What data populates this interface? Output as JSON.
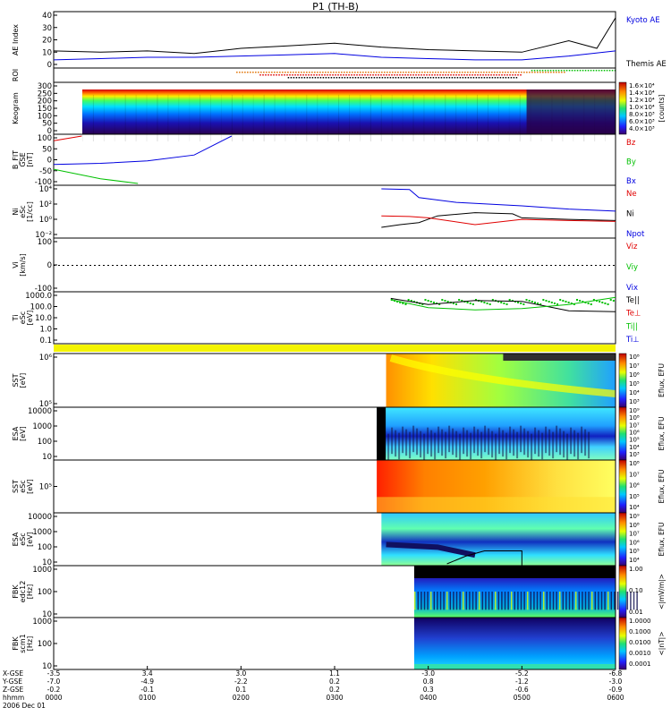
{
  "title": "P1 (TH-B)",
  "colors": {
    "red": "#e00000",
    "green": "#00c000",
    "blue": "#0000e0",
    "black": "#000000",
    "orange": "#e07000"
  },
  "panels": [
    {
      "id": "ae",
      "ylabel": [
        "AE Index"
      ],
      "ticks": [
        "40",
        "30",
        "20",
        "10",
        "0"
      ],
      "legend": [
        {
          "text": "Kyoto AE",
          "color": "blue"
        },
        {
          "text": "Themis AE",
          "color": "black"
        }
      ]
    },
    {
      "id": "roi",
      "ylabel": [
        "ROI"
      ],
      "ticks": [],
      "legend": []
    },
    {
      "id": "keogram",
      "ylabel": [
        "Keogram"
      ],
      "ticks": [
        "300",
        "250",
        "200",
        "150",
        "100",
        "50",
        "0"
      ],
      "colorbar": {
        "title": "[counts]",
        "labels": [
          "1.6×10⁴",
          "1.4×10⁴",
          "1.2×10⁴",
          "1.0×10⁴",
          "8.0×10³",
          "6.0×10³",
          "4.0×10³"
        ]
      }
    },
    {
      "id": "bfit",
      "ylabel": [
        "B_FIT",
        "GSE",
        "[nT]"
      ],
      "ticks": [
        "100",
        "50",
        "0",
        "-50",
        "-100"
      ],
      "legend": [
        {
          "text": "Bz",
          "color": "red"
        },
        {
          "text": "By",
          "color": "green"
        },
        {
          "text": "Bx",
          "color": "blue"
        }
      ]
    },
    {
      "id": "ni",
      "ylabel": [
        "Ni",
        "eSc",
        "[1/cc]"
      ],
      "ticks": [
        "10⁴",
        "10²",
        "10⁰",
        "10⁻²"
      ],
      "legend": [
        {
          "text": "Ne",
          "color": "red"
        },
        {
          "text": "Ni",
          "color": "black"
        },
        {
          "text": "Npot",
          "color": "blue"
        }
      ]
    },
    {
      "id": "vi",
      "ylabel": [
        "Vi",
        "[km/s]"
      ],
      "ticks": [
        "100",
        "0",
        "-100"
      ],
      "legend": [
        {
          "text": "Viz",
          "color": "red"
        },
        {
          "text": "Viy",
          "color": "green"
        },
        {
          "text": "Vix",
          "color": "blue"
        }
      ]
    },
    {
      "id": "ti",
      "ylabel": [
        "Ti",
        "eSc",
        "[eV]"
      ],
      "ticks": [
        "1000.0",
        "100.0",
        "10.0",
        "1.0",
        "0.1"
      ],
      "legend": [
        {
          "text": "Te||",
          "color": "black"
        },
        {
          "text": "Te⊥",
          "color": "red"
        },
        {
          "text": "Ti||",
          "color": "green"
        },
        {
          "text": "Ti⊥",
          "color": "blue"
        }
      ]
    },
    {
      "id": "sst1",
      "ylabel": [
        "SST",
        "[eV]"
      ],
      "ticks": [
        "10⁶",
        "10⁵"
      ],
      "colorbar": {
        "title": "Eflux, EFU",
        "labels": [
          "10⁸",
          "10⁷",
          "10⁶",
          "10⁵",
          "10⁴",
          "10³"
        ]
      }
    },
    {
      "id": "esa1",
      "ylabel": [
        "ESA",
        "[eV]"
      ],
      "ticks": [
        "10000",
        "1000",
        "100",
        "10"
      ],
      "colorbar": {
        "title": "Eflux, EFU",
        "labels": [
          "10⁹",
          "10⁸",
          "10⁷",
          "10⁶",
          "10⁵",
          "10⁴",
          "10³"
        ]
      }
    },
    {
      "id": "sst2",
      "ylabel": [
        "SST",
        "eSc",
        "[eV]"
      ],
      "ticks": [
        "10⁵"
      ],
      "colorbar": {
        "title": "Eflux, EFU",
        "labels": [
          "10⁸",
          "10⁷",
          "10⁶",
          "10⁵",
          "10⁴"
        ]
      }
    },
    {
      "id": "esa2",
      "ylabel": [
        "ESA",
        "eSc",
        "[eV]"
      ],
      "ticks": [
        "10000",
        "1000",
        "100",
        "10"
      ],
      "colorbar": {
        "title": "Eflux, EFU",
        "labels": [
          "10⁹",
          "10⁸",
          "10⁷",
          "10⁶",
          "10⁵",
          "10⁴"
        ]
      }
    },
    {
      "id": "fbk1",
      "ylabel": [
        "FBK",
        "edc12",
        "[Hz]"
      ],
      "ticks": [
        "1000",
        "100",
        "10"
      ],
      "colorbar": {
        "title": "<|mV/m|>",
        "labels": [
          "1.00",
          "0.10",
          "0.01"
        ]
      }
    },
    {
      "id": "fbk2",
      "ylabel": [
        "FBK",
        "scm1",
        "[Hz]"
      ],
      "ticks": [
        "1000",
        "100",
        "10"
      ],
      "colorbar": {
        "title": "<|nT|>",
        "labels": [
          "1.0000",
          "0.1000",
          "0.0100",
          "0.0010",
          "0.0001"
        ]
      }
    }
  ],
  "xaxis": {
    "row_labels": [
      "X-GSE",
      "Y-GSE",
      "Z-GSE",
      "hhmm",
      "2006 Dec 01"
    ],
    "columns": [
      {
        "vals": [
          "-3.5",
          "-7.0",
          "-0.2",
          "0000"
        ]
      },
      {
        "vals": [
          "3.4",
          "-4.9",
          "-0.1",
          "0100"
        ]
      },
      {
        "vals": [
          "3.0",
          "-2.2",
          "0.1",
          "0200"
        ]
      },
      {
        "vals": [
          "1.1",
          "0.2",
          "0.2",
          "0300"
        ]
      },
      {
        "vals": [
          "-3.0",
          "0.8",
          "0.3",
          "0400"
        ]
      },
      {
        "vals": [
          "-5.2",
          "-1.2",
          "-0.6",
          "0500"
        ]
      },
      {
        "vals": [
          "-6.8",
          "-3.0",
          "-0.9",
          "0600"
        ]
      }
    ]
  },
  "chart_data": {
    "type": "line",
    "title": "P1 (TH-B)",
    "x_range_hours": [
      0,
      6
    ],
    "x_tick_labels": [
      "0000",
      "0100",
      "0200",
      "0300",
      "0400",
      "0500",
      "0600"
    ],
    "date": "2006 Dec 01",
    "series": [
      {
        "name": "Kyoto AE",
        "panel": "ae",
        "x": [
          0,
          0.5,
          1,
          1.5,
          2,
          2.5,
          3,
          3.5,
          4,
          4.5,
          5,
          5.5,
          6
        ],
        "values": [
          5,
          6,
          7,
          7,
          8,
          9,
          10,
          7,
          6,
          5,
          5,
          8,
          12
        ]
      },
      {
        "name": "Themis AE",
        "panel": "ae",
        "x": [
          0,
          0.5,
          1,
          1.5,
          2,
          2.5,
          3,
          3.5,
          4,
          4.5,
          5,
          5.5,
          5.8,
          6
        ],
        "values": [
          12,
          11,
          12,
          10,
          14,
          16,
          18,
          15,
          13,
          12,
          11,
          20,
          14,
          38
        ]
      },
      {
        "name": "Bx",
        "panel": "bfit",
        "x": [
          0,
          0.5,
          1,
          1.5,
          1.9
        ],
        "values": [
          -20,
          -15,
          -5,
          20,
          100
        ]
      },
      {
        "name": "By",
        "panel": "bfit",
        "x": [
          0,
          0.5,
          0.9
        ],
        "values": [
          -40,
          -80,
          -100
        ]
      },
      {
        "name": "Bz",
        "panel": "bfit",
        "x": [
          0,
          0.3
        ],
        "values": [
          80,
          100
        ]
      },
      {
        "name": "Ni",
        "panel": "ni",
        "x": [
          3.5,
          3.7,
          3.9,
          4.1,
          4.5,
          4.9,
          5.0,
          5.5,
          6.0
        ],
        "values": [
          0.02,
          0.05,
          0.1,
          1,
          3,
          2,
          0.5,
          0.3,
          0.2
        ]
      },
      {
        "name": "Ne",
        "panel": "ni",
        "x": [
          3.5,
          3.8,
          4.0,
          4.5,
          5.0,
          5.5,
          6.0
        ],
        "values": [
          1,
          0.8,
          0.5,
          0.05,
          0.3,
          0.2,
          0.15
        ]
      },
      {
        "name": "Npot",
        "panel": "ni",
        "x": [
          3.5,
          3.8,
          3.9,
          4.3,
          5.0,
          5.5,
          6.0
        ],
        "values": [
          10000,
          8000,
          500,
          100,
          30,
          10,
          5
        ]
      },
      {
        "name": "Te||",
        "panel": "ti",
        "x": [
          3.6,
          4.0,
          4.5,
          5.0,
          5.5,
          6.0
        ],
        "values": [
          800,
          200,
          500,
          400,
          50,
          40
        ]
      },
      {
        "name": "Ti||",
        "panel": "ti",
        "x": [
          3.6,
          4.0,
          4.5,
          5.0,
          5.5,
          6.0
        ],
        "values": [
          600,
          100,
          60,
          80,
          200,
          1000
        ]
      }
    ]
  }
}
